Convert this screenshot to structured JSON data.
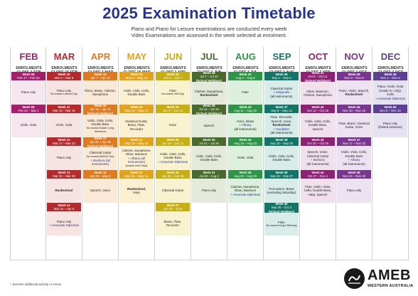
{
  "title": "2025 Examination Timetable",
  "subtitle_lines": [
    "Piano and Piano for Leisure examinations are conducted every week",
    "Video Examinations are assessed in the week selected at enrolment."
  ],
  "footnote": "+ denotes additional activity or venue",
  "logo": {
    "name": "AMEB",
    "sub": "WESTERN AUSTRALIA"
  },
  "months": [
    {
      "name": "FEB",
      "enrol_label": "ENROLMENTS",
      "closes": "CLOSE 1 FEB",
      "color": "#a41e6e",
      "tint": "#f6e6ee"
    },
    {
      "name": "MAR",
      "enrol_label": "ENROLMENTS",
      "closes": "CLOSE 15 FEB",
      "color": "#b52a2c",
      "tint": "#f7e3e2"
    },
    {
      "name": "APR",
      "enrol_label": "ENROLMENTS",
      "closes": "CLOSE 1 MAR",
      "color": "#e07a1f",
      "tint": "#fbe9d8"
    },
    {
      "name": "MAY",
      "enrol_label": "ENROLMENTS",
      "closes": "CLOSE 15 MAR",
      "color": "#e3a21b",
      "tint": "#fcf0d2"
    },
    {
      "name": "JUN",
      "enrol_label": "ENROLMENTS",
      "closes": "CLOSE 1 APR",
      "color": "#c7ae12",
      "tint": "#f8f2cf"
    },
    {
      "name": "JUL",
      "enrol_label": "ENROLMENTS",
      "closes": "CLOSE 1 JUN",
      "color": "#486a2b",
      "tint": "#e4ead9"
    },
    {
      "name": "AUG",
      "enrol_label": "ENROLMENTS",
      "closes": "CLOSE 1 JUL",
      "color": "#2f9546",
      "tint": "#ddefdd"
    },
    {
      "name": "SEP",
      "enrol_label": "ENROLMENTS",
      "closes": "CLOSE 1 AUG",
      "color": "#137566",
      "tint": "#d8ecea"
    },
    {
      "name": "OCT",
      "enrol_label": "ENROLMENTS",
      "closes": "CLOSE 1 SEP",
      "color": "#8e2175",
      "tint": "#f0e1ec"
    },
    {
      "name": "NOV",
      "enrol_label": "ENROLMENTS",
      "closes": "CLOSE 1 OCT",
      "color": "#7a3590",
      "tint": "#ece2f1"
    },
    {
      "name": "DEC",
      "enrol_label": "ENROLMENTS",
      "closes": "CLOSE 1 OCT",
      "color": "#5e3f96",
      "tint": "#e6e1f1"
    }
  ],
  "weeks": [
    [
      {
        "week": "Week 08",
        "dates": "Feb 17 – Feb 22",
        "instruments": [
          "Piano only"
        ]
      },
      {
        "week": "Week 09",
        "dates": "Feb 24 – Mar 1",
        "instruments": [
          "Violin, Viola"
        ]
      }
    ],
    [
      {
        "week": "Week 10",
        "dates": "Mar 4 – Mar 8",
        "instruments": [
          "Piano only",
          "No exams Labour Day"
        ]
      },
      {
        "week": "Week 11",
        "dates": "Mar 10 – Mar 15",
        "instruments": [
          "Violin, Viola"
        ]
      },
      {
        "week": "Week 12",
        "dates": "Mar 17 – Mar 22",
        "instruments": [
          "Piano only"
        ]
      },
      {
        "week": "Week 13",
        "dates": "Mar 24 – Mar 29",
        "instruments": [
          "Rockschool"
        ]
      },
      {
        "week": "Week 14",
        "dates": "Mar 31 – Apr 5",
        "instruments": [
          "Piano only",
          "+ Associate Diplomas"
        ]
      }
    ],
    [
      {
        "week": "Week 15",
        "dates": "Apr 7 – Apr 12",
        "instruments": [
          "Piano, Brass, Clarinet,",
          "Saxophone"
        ]
      },
      {
        "week": "Week 16",
        "dates": "Apr 14 – Apr 17",
        "extra": "(School Holidays)",
        "instruments": [
          "Violin, Viola, Cello,",
          "Double Bass",
          "No exams Easter Long Weekend"
        ]
      },
      {
        "week": "Week 17",
        "dates": "Apr 22 – Apr 26",
        "extra": "(School Holidays)",
        "instruments": [
          "Classical Guitar",
          "No exams ANZAC Day",
          "+ Bunbury (all instruments)"
        ]
      },
      {
        "week": "Week 18",
        "dates": "Apr 28 – May 3",
        "instruments": [
          "Speech, Voice"
        ]
      }
    ],
    [
      {
        "week": "Week 19",
        "dates": "May 5 – May 10",
        "instruments": [
          "Violin, Viola, Cello,",
          "Double Bass"
        ]
      },
      {
        "week": "Week 20",
        "dates": "May 12 – May 17",
        "instruments": [
          "Classical Guitar,",
          "Brass, Flute,",
          "Recorder"
        ]
      },
      {
        "week": "Week 21",
        "dates": "May 19 – May 24",
        "instruments": [
          "Clarinet, Saxophone,",
          "Oboe, Bassoon",
          "+ Albany (all instruments)",
          "(exams held Sept)"
        ]
      },
      {
        "week": "Week 22",
        "dates": "May 26 – May 31",
        "instruments": [
          "Rockschool,",
          "Harp"
        ]
      }
    ],
    [
      {
        "week": "Week 23",
        "dates": "Jun 3 – Jun 7",
        "instruments": [
          "Flute",
          "No exams WA Day"
        ]
      },
      {
        "week": "Week 24",
        "dates": "Jun 9 – Jun 14",
        "instruments": [
          "Voice"
        ]
      },
      {
        "week": "Week 25",
        "dates": "Jun 16 – Jun 21",
        "instruments": [
          "Violin, Viola, Cello,",
          "Double Bass",
          "+ Associate Diplomas"
        ]
      },
      {
        "week": "Week 26",
        "dates": "Jun 23 – Jun 28",
        "instruments": [
          "Classical Guitar"
        ]
      },
      {
        "week": "Week 27",
        "dates": "Jun 30 – Jul 5",
        "instruments": [
          "Brass, Flute,",
          "Recorder"
        ]
      }
    ],
    [
      {
        "week": "Week 28",
        "dates": "Jul 7 – Jul 12",
        "extra": "(School Holidays)",
        "instruments": [
          "Clarinet, Saxophone,",
          "Rockschool"
        ]
      },
      {
        "week": "Week 29",
        "dates": "Jul 14 – Jul 19",
        "extra": "(School Holidays)",
        "instruments": [
          "Speech"
        ]
      },
      {
        "week": "Week 30",
        "dates": "Jul 21 – Jul 26",
        "instruments": [
          "Violin, Viola, Cello,",
          "Double Bass"
        ]
      },
      {
        "week": "Week 31",
        "dates": "Jul 28 – Aug 2",
        "instruments": [
          "Piano only"
        ]
      }
    ],
    [
      {
        "week": "Week 32",
        "dates": "Aug 4 – Aug 9",
        "instruments": [
          "Flute"
        ]
      },
      {
        "week": "Week 33",
        "dates": "Aug 11 – Aug 16",
        "instruments": [
          "Voice, Brass",
          "+ Albany",
          "(all instruments)"
        ]
      },
      {
        "week": "Week 34",
        "dates": "Aug 18 – Aug 23",
        "instruments": [
          "Violin, Viola"
        ]
      },
      {
        "week": "Week 35",
        "dates": "Aug 25 – Aug 30",
        "instruments": [
          "Clarinet, Saxophone,",
          "Oboe, Bassoon",
          "+ Associate Diplomas"
        ]
      }
    ],
    [
      {
        "week": "Week 36",
        "dates": "Sep 1 – Sep 6",
        "instruments": [
          "Classical Guitar",
          "+ Kalgoorlie",
          "(all instruments)"
        ]
      },
      {
        "week": "Week 37",
        "dates": "Sep 8 – Sep 13",
        "instruments": [
          "Flute, Recorder,",
          "Speech, Voice,",
          "Rockschool",
          "+ Geraldton",
          "(all instruments)"
        ]
      },
      {
        "week": "Week 38",
        "dates": "Sep 15 – Sep 20",
        "instruments": [
          "Violin, Viola, Cello,",
          "Double Bass"
        ]
      },
      {
        "week": "Week 39",
        "dates": "Sep 22 – Sep 27",
        "instruments": [
          "Percussion, Brass",
          "(excluding Saturday)"
        ]
      },
      {
        "week": "Week 40",
        "dates": "Sep 30 – Oct 4",
        "extra": "(School Holidays)",
        "instruments": [
          "Flute",
          "No exams King's Birthday"
        ]
      }
    ],
    [
      {
        "week": "Week 41",
        "dates": "Oct 6 – Oct 11",
        "extra": "(School Holidays)",
        "instruments": [
          "Oboe, Bassoon,",
          "Clarinet, Saxophone"
        ]
      },
      {
        "week": "Week 42",
        "dates": "Oct 13 – Oct 18",
        "instruments": [
          "Violin, Viola, Cello,",
          "Double Bass,",
          "Speech"
        ]
      },
      {
        "week": "Week 43",
        "dates": "Oct 20 – Oct 25",
        "instruments": [
          "Speech, Voice,",
          "Classical Guitar",
          "+ Bunbury",
          "(all instruments)"
        ]
      },
      {
        "week": "Week 44",
        "dates": "Oct 27 – Nov 1",
        "instruments": [
          "Flute, Violin, Viola,",
          "Cello, Double Bass,",
          "Harp, Speech"
        ]
      }
    ],
    [
      {
        "week": "Week 45",
        "dates": "Nov 3 – Nov 8",
        "instruments": [
          "Piano, Violin, Speech,",
          "Rockschool"
        ]
      },
      {
        "week": "Week 46",
        "dates": "Nov 10 – Nov 15",
        "instruments": [
          "Flute, Brass, Classical",
          "Guitar, Voice"
        ]
      },
      {
        "week": "Week 47",
        "dates": "Nov 17 – Nov 22",
        "instruments": [
          "Violin, Viola, Cello,",
          "Double Bass",
          "+ Albany",
          "(all instruments)"
        ]
      },
      {
        "week": "Week 48",
        "dates": "Nov 24 – Nov 29",
        "instruments": [
          "Piano only"
        ]
      }
    ],
    [
      {
        "week": "Week 49",
        "dates": "Dec 1 – Dec 6",
        "instruments": [
          "Piano, Violin, Viola",
          "(Grade 5+ only),",
          "Cello",
          "+ Associate Diplomas"
        ]
      },
      {
        "week": "Week 50",
        "dates": "Dec 8 – Dec 10",
        "instruments": [
          "Piano only",
          "(limited sessions)"
        ]
      }
    ]
  ]
}
